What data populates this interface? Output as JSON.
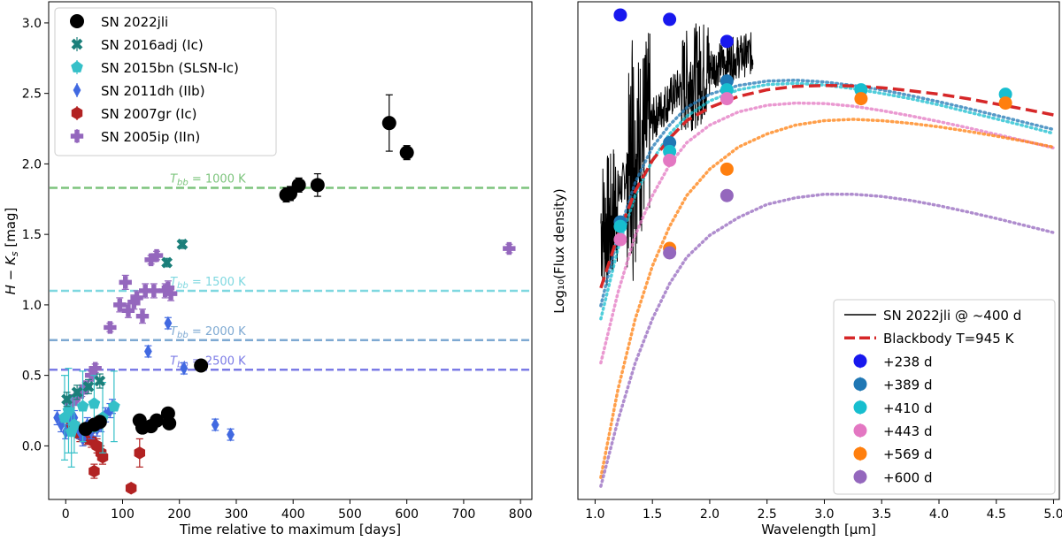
{
  "chart_data": [
    {
      "type": "scatter",
      "title": "",
      "xlabel": "Time relative to maximum [days]",
      "ylabel": "H − K_s [mag]",
      "xlim": [
        -30,
        820
      ],
      "ylim": [
        -0.38,
        3.15
      ],
      "x_ticks": [
        0,
        100,
        200,
        300,
        400,
        500,
        600,
        700,
        800
      ],
      "y_ticks": [
        0.0,
        0.5,
        1.0,
        1.5,
        2.0,
        2.5,
        3.0
      ],
      "x_tick_labels": [
        "0",
        "100",
        "200",
        "300",
        "400",
        "500",
        "600",
        "700",
        "800"
      ],
      "y_tick_labels": [
        "0.0",
        "0.5",
        "1.0",
        "1.5",
        "2.0",
        "2.5",
        "3.0"
      ],
      "hlines": [
        {
          "y": 1.83,
          "color": "#7cc47c",
          "label_tbb": "1000 K"
        },
        {
          "y": 1.1,
          "color": "#7fd8e0",
          "label_tbb": "1500 K"
        },
        {
          "y": 0.75,
          "color": "#7ea9d2",
          "label_tbb": "2000 K"
        },
        {
          "y": 0.54,
          "color": "#7b7be6",
          "label_tbb": "2500 K"
        }
      ],
      "tbb_prefix": "T",
      "tbb_sub": "bb",
      "tbb_eq": " = ",
      "legend_position": "top-left",
      "series": [
        {
          "name": "SN 2022jli",
          "color": "#000000",
          "marker": "circle",
          "points": [
            [
              35,
              0.12,
              0.04
            ],
            [
              50,
              0.15,
              0.04
            ],
            [
              60,
              0.17,
              0.04
            ],
            [
              130,
              0.18,
              0.04
            ],
            [
              135,
              0.13,
              0.04
            ],
            [
              150,
              0.14,
              0.04
            ],
            [
              160,
              0.18,
              0.04
            ],
            [
              180,
              0.23,
              0.04
            ],
            [
              182,
              0.16,
              0.04
            ],
            [
              238,
              0.57,
              0.03
            ],
            [
              388,
              1.78,
              0.05
            ],
            [
              395,
              1.79,
              0.05
            ],
            [
              410,
              1.85,
              0.05
            ],
            [
              443,
              1.85,
              0.08
            ],
            [
              569,
              2.29,
              0.2
            ],
            [
              600,
              2.08,
              0.05
            ]
          ]
        },
        {
          "name": "SN 2016adj (Ic)",
          "color": "#1b7f7a",
          "marker": "x",
          "points": [
            [
              2,
              0.33,
              0.05
            ],
            [
              20,
              0.38,
              0.05
            ],
            [
              40,
              0.42,
              0.05
            ],
            [
              60,
              0.46,
              0.05
            ],
            [
              178,
              1.3,
              0.03
            ],
            [
              205,
              1.43,
              0.03
            ]
          ]
        },
        {
          "name": "SN 2015bn (SLSN-Ic)",
          "color": "#35c0c8",
          "marker": "pentagon",
          "points": [
            [
              -2,
              0.2,
              0.3
            ],
            [
              5,
              0.25,
              0.3
            ],
            [
              10,
              0.1,
              0.25
            ],
            [
              15,
              0.15,
              0.2
            ],
            [
              30,
              0.28,
              0.25
            ],
            [
              50,
              0.3,
              0.2
            ],
            [
              65,
              0.2,
              0.25
            ],
            [
              85,
              0.28,
              0.25
            ]
          ]
        },
        {
          "name": "SN 2011dh (IIb)",
          "color": "#4169e1",
          "marker": "diamond",
          "points": [
            [
              -15,
              0.2,
              0.05
            ],
            [
              -8,
              0.15,
              0.05
            ],
            [
              0,
              0.1,
              0.05
            ],
            [
              5,
              0.2,
              0.05
            ],
            [
              15,
              0.2,
              0.05
            ],
            [
              25,
              0.1,
              0.05
            ],
            [
              30,
              0.05,
              0.05
            ],
            [
              38,
              0.15,
              0.05
            ],
            [
              45,
              0.1,
              0.05
            ],
            [
              55,
              0.12,
              0.05
            ],
            [
              62,
              0.15,
              0.05
            ],
            [
              70,
              0.22,
              0.05
            ],
            [
              78,
              0.25,
              0.05
            ],
            [
              82,
              0.28,
              0.05
            ],
            [
              145,
              0.67,
              0.04
            ],
            [
              180,
              0.87,
              0.04
            ],
            [
              208,
              0.55,
              0.04
            ],
            [
              263,
              0.15,
              0.04
            ],
            [
              290,
              0.08,
              0.04
            ]
          ]
        },
        {
          "name": "SN 2007gr (Ic)",
          "color": "#b22222",
          "marker": "hexagon",
          "points": [
            [
              10,
              0.15,
              0.05
            ],
            [
              18,
              0.12,
              0.05
            ],
            [
              25,
              0.08,
              0.05
            ],
            [
              35,
              0.06,
              0.05
            ],
            [
              45,
              0.04,
              0.05
            ],
            [
              50,
              -0.18,
              0.05
            ],
            [
              55,
              0.0,
              0.05
            ],
            [
              62,
              -0.05,
              0.05
            ],
            [
              65,
              -0.08,
              0.05
            ],
            [
              115,
              -0.3,
              0.03
            ],
            [
              130,
              -0.05,
              0.1
            ]
          ]
        },
        {
          "name": "SN 2005ip (IIn)",
          "color": "#9467bd",
          "marker": "plus",
          "points": [
            [
              10,
              0.3,
              0.03
            ],
            [
              20,
              0.35,
              0.03
            ],
            [
              28,
              0.38,
              0.03
            ],
            [
              35,
              0.42,
              0.03
            ],
            [
              45,
              0.5,
              0.03
            ],
            [
              52,
              0.55,
              0.03
            ],
            [
              78,
              0.84,
              0.03
            ],
            [
              95,
              1.0,
              0.05
            ],
            [
              105,
              1.16,
              0.05
            ],
            [
              110,
              0.96,
              0.05
            ],
            [
              120,
              1.02,
              0.05
            ],
            [
              125,
              1.05,
              0.05
            ],
            [
              135,
              0.92,
              0.05
            ],
            [
              140,
              1.1,
              0.05
            ],
            [
              150,
              1.32,
              0.03
            ],
            [
              155,
              1.1,
              0.05
            ],
            [
              160,
              1.35,
              0.03
            ],
            [
              175,
              1.1,
              0.05
            ],
            [
              180,
              1.12,
              0.05
            ],
            [
              185,
              1.08,
              0.05
            ],
            [
              780,
              1.4,
              0.03
            ]
          ]
        }
      ]
    },
    {
      "type": "line",
      "title": "",
      "xlabel": "Wavelength [μm]",
      "ylabel": "Log₁₀(Flux density)",
      "xlim": [
        0.85,
        5.05
      ],
      "ylim": [
        -0.13,
        1.0
      ],
      "x_ticks": [
        1.0,
        1.5,
        2.0,
        2.5,
        3.0,
        3.5,
        4.0,
        4.5,
        5.0
      ],
      "x_tick_labels": [
        "1.0",
        "1.5",
        "2.0",
        "2.5",
        "3.0",
        "3.5",
        "4.0",
        "4.5",
        "5.0"
      ],
      "legend_position": "bottom-right",
      "legend": [
        {
          "label": "SN 2022jli @ ~400 d",
          "kind": "line",
          "color": "#000000"
        },
        {
          "label": "Blackbody T=945 K",
          "kind": "dashed",
          "color": "#d62728"
        },
        {
          "label": "+238 d",
          "kind": "point",
          "color": "#1818ee"
        },
        {
          "label": "+389 d",
          "kind": "point",
          "color": "#1f77b4"
        },
        {
          "label": "+410 d",
          "kind": "point",
          "color": "#17becf"
        },
        {
          "label": "+443 d",
          "kind": "point",
          "color": "#e377c2"
        },
        {
          "label": "+569 d",
          "kind": "point",
          "color": "#ff7f0e"
        },
        {
          "label": "+600 d",
          "kind": "point",
          "color": "#9467bd"
        }
      ],
      "blackbody_curve": {
        "x": [
          1.05,
          1.2,
          1.35,
          1.5,
          1.65,
          1.8,
          2.0,
          2.25,
          2.5,
          2.75,
          3.0,
          3.25,
          3.5,
          3.75,
          4.0,
          4.25,
          4.5,
          4.75,
          5.0
        ],
        "y": [
          0.35,
          0.47,
          0.57,
          0.64,
          0.69,
          0.73,
          0.76,
          0.785,
          0.8,
          0.808,
          0.81,
          0.809,
          0.805,
          0.798,
          0.79,
          0.78,
          0.768,
          0.756,
          0.743
        ]
      },
      "model_curves": [
        {
          "name": "+389 d",
          "color": "#1f77b4",
          "x": [
            1.05,
            1.2,
            1.35,
            1.5,
            1.65,
            1.8,
            2.0,
            2.25,
            2.5,
            2.75,
            3.0,
            3.25,
            3.5,
            3.75,
            4.0,
            4.25,
            4.5,
            4.75,
            5.0
          ],
          "y": [
            0.31,
            0.47,
            0.59,
            0.67,
            0.72,
            0.76,
            0.79,
            0.81,
            0.82,
            0.822,
            0.818,
            0.81,
            0.8,
            0.787,
            0.773,
            0.758,
            0.742,
            0.726,
            0.71
          ]
        },
        {
          "name": "+410 d",
          "color": "#17becf",
          "x": [
            1.05,
            1.2,
            1.35,
            1.5,
            1.65,
            1.8,
            2.0,
            2.25,
            2.5,
            2.75,
            3.0,
            3.25,
            3.5,
            3.75,
            4.0,
            4.25,
            4.5,
            4.75,
            5.0
          ],
          "y": [
            0.28,
            0.44,
            0.56,
            0.64,
            0.7,
            0.74,
            0.775,
            0.8,
            0.812,
            0.815,
            0.811,
            0.803,
            0.792,
            0.78,
            0.766,
            0.75,
            0.734,
            0.718,
            0.701
          ]
        },
        {
          "name": "+443 d",
          "color": "#e377c2",
          "x": [
            1.05,
            1.2,
            1.35,
            1.5,
            1.65,
            1.8,
            2.0,
            2.25,
            2.5,
            2.75,
            3.0,
            3.25,
            3.5,
            3.75,
            4.0,
            4.25,
            4.5,
            4.75,
            5.0
          ],
          "y": [
            0.18,
            0.34,
            0.47,
            0.56,
            0.63,
            0.68,
            0.72,
            0.75,
            0.765,
            0.77,
            0.769,
            0.763,
            0.753,
            0.741,
            0.728,
            0.714,
            0.699,
            0.684,
            0.668
          ]
        },
        {
          "name": "+569 d",
          "color": "#ff7f0e",
          "x": [
            1.05,
            1.2,
            1.35,
            1.5,
            1.65,
            1.8,
            2.0,
            2.25,
            2.5,
            2.75,
            3.0,
            3.25,
            3.5,
            3.75,
            4.0,
            4.25,
            4.5,
            4.75,
            5.0
          ],
          "y": [
            -0.08,
            0.12,
            0.28,
            0.4,
            0.49,
            0.56,
            0.62,
            0.67,
            0.7,
            0.72,
            0.73,
            0.733,
            0.73,
            0.724,
            0.716,
            0.706,
            0.695,
            0.683,
            0.67
          ]
        },
        {
          "name": "+600 d",
          "color": "#9467bd",
          "x": [
            1.05,
            1.2,
            1.35,
            1.5,
            1.65,
            1.8,
            2.0,
            2.25,
            2.5,
            2.75,
            3.0,
            3.25,
            3.5,
            3.75,
            4.0,
            4.25,
            4.5,
            4.75,
            5.0
          ],
          "y": [
            -0.1,
            0.05,
            0.18,
            0.28,
            0.36,
            0.42,
            0.47,
            0.51,
            0.54,
            0.555,
            0.563,
            0.563,
            0.558,
            0.549,
            0.537,
            0.523,
            0.508,
            0.492,
            0.476
          ]
        }
      ],
      "photometry": [
        {
          "name": "+238 d",
          "color": "#1818ee",
          "points": [
            [
              1.22,
              0.97
            ],
            [
              1.65,
              0.96
            ],
            [
              2.15,
              0.91
            ]
          ]
        },
        {
          "name": "+389 d",
          "color": "#1f77b4",
          "points": [
            [
              1.22,
              0.5
            ],
            [
              1.65,
              0.68
            ],
            [
              2.15,
              0.82
            ]
          ]
        },
        {
          "name": "+410 d",
          "color": "#17becf",
          "points": [
            [
              1.22,
              0.49
            ],
            [
              1.65,
              0.66
            ],
            [
              2.15,
              0.8
            ],
            [
              3.32,
              0.8
            ],
            [
              4.58,
              0.79
            ]
          ]
        },
        {
          "name": "+443 d",
          "color": "#e377c2",
          "points": [
            [
              1.22,
              0.46
            ],
            [
              1.65,
              0.64
            ],
            [
              2.15,
              0.78
            ]
          ]
        },
        {
          "name": "+569 d",
          "color": "#ff7f0e",
          "points": [
            [
              1.65,
              0.44
            ],
            [
              2.15,
              0.62
            ],
            [
              3.32,
              0.78
            ],
            [
              4.58,
              0.77
            ]
          ]
        },
        {
          "name": "+600 d",
          "color": "#9467bd",
          "points": [
            [
              1.65,
              0.43
            ],
            [
              2.15,
              0.56
            ]
          ]
        }
      ],
      "spectrum": {
        "x_start": 1.05,
        "x_end": 2.38,
        "samples": 520
      }
    }
  ]
}
